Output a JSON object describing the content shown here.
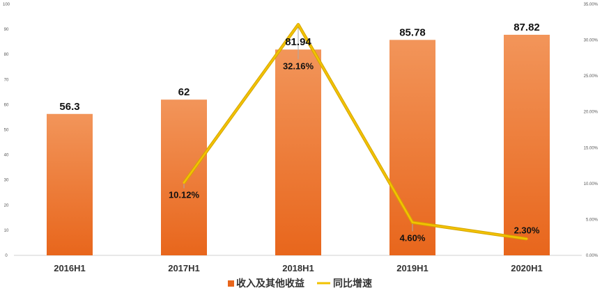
{
  "chart_data": {
    "type": "bar",
    "categories": [
      "2016H1",
      "2017H1",
      "2018H1",
      "2019H1",
      "2020H1"
    ],
    "series": [
      {
        "name": "收入及其他收益",
        "type": "bar",
        "axis": "left",
        "values": [
          56.3,
          62,
          81.94,
          85.78,
          87.82
        ],
        "labels": [
          "56.3",
          "62",
          "81.94",
          "85.78",
          "87.82"
        ]
      },
      {
        "name": "同比增速",
        "type": "line",
        "axis": "right",
        "values": [
          null,
          10.12,
          32.16,
          4.6,
          2.3
        ],
        "labels": [
          "",
          "10.12%",
          "32.16%",
          "4.60%",
          "2.30%"
        ]
      }
    ],
    "y_left": {
      "ylim": [
        0,
        100
      ],
      "ticks": [
        "0",
        "10",
        "20",
        "30",
        "40",
        "50",
        "60",
        "70",
        "80",
        "90",
        "100"
      ]
    },
    "y_right": {
      "ylim": [
        0,
        35
      ],
      "ticks": [
        "0.00%",
        "5.00%",
        "10.00%",
        "15.00%",
        "20.00%",
        "25.00%",
        "30.00%",
        "35.00%"
      ]
    },
    "grid": false,
    "legend": "bottom",
    "colors": {
      "bar_top": "#f2955a",
      "bar_bottom": "#e8661c",
      "line": "#f2c200",
      "line_edge": "#d4a400"
    }
  }
}
